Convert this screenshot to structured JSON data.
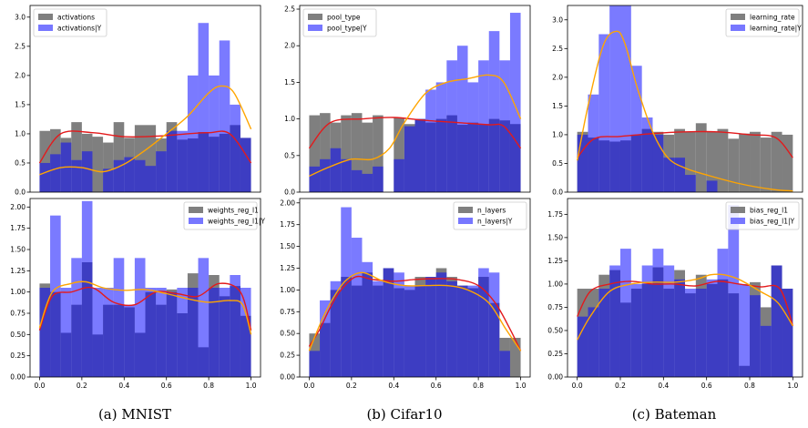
{
  "colors": {
    "marginal": "#7f7f7f",
    "conditional": "#7777ff",
    "overlap": "#3b3bb5",
    "kde_marginal": "#e31a1c",
    "kde_conditional": "#ffa500"
  },
  "captions": [
    "(a) MNIST",
    "(b) Cifar10",
    "(c) Bateman"
  ],
  "chart_data": [
    {
      "type": "bar",
      "legend": [
        "activations",
        "activations|Y"
      ],
      "legend_position": "top-left",
      "ylim": [
        0,
        3.2
      ],
      "yticks": [
        "0.0",
        "0.5",
        "1.0",
        "1.5",
        "2.0",
        "2.5",
        "3.0"
      ],
      "ytick_values": [
        0,
        0.5,
        1,
        1.5,
        2,
        2.5,
        3
      ],
      "xticks": [],
      "bins": 20,
      "marginal": [
        1.05,
        1.08,
        0.93,
        1.2,
        1.0,
        0.95,
        0.85,
        1.2,
        0.93,
        1.15,
        1.15,
        0.92,
        1.2,
        0.9,
        0.92,
        1.03,
        0.95,
        1.0,
        1.15,
        0.93
      ],
      "conditional": [
        0.5,
        0.65,
        0.85,
        0.55,
        0.7,
        0.0,
        0.4,
        0.55,
        0.6,
        0.55,
        0.45,
        0.7,
        1.05,
        1.05,
        2.0,
        2.9,
        2.0,
        2.6,
        1.5,
        0.93
      ],
      "kde_marginal": [
        [
          0,
          0.5
        ],
        [
          0.1,
          1.0
        ],
        [
          0.25,
          1.02
        ],
        [
          0.4,
          0.95
        ],
        [
          0.55,
          0.96
        ],
        [
          0.7,
          1.0
        ],
        [
          0.8,
          1.02
        ],
        [
          0.9,
          1.0
        ],
        [
          1.0,
          0.5
        ]
      ],
      "kde_conditional": [
        [
          0,
          0.3
        ],
        [
          0.1,
          0.42
        ],
        [
          0.2,
          0.42
        ],
        [
          0.3,
          0.35
        ],
        [
          0.4,
          0.48
        ],
        [
          0.5,
          0.72
        ],
        [
          0.6,
          1.0
        ],
        [
          0.7,
          1.3
        ],
        [
          0.8,
          1.7
        ],
        [
          0.86,
          1.82
        ],
        [
          0.92,
          1.7
        ],
        [
          1.0,
          1.08
        ]
      ]
    },
    {
      "type": "bar",
      "legend": [
        "pool_type",
        "pool_type|Y"
      ],
      "legend_position": "top-left",
      "ylim": [
        0,
        2.55
      ],
      "yticks": [
        "0.0",
        "0.5",
        "1.0",
        "1.5",
        "2.0",
        "2.5"
      ],
      "ytick_values": [
        0,
        0.5,
        1,
        1.5,
        2,
        2.5
      ],
      "xticks": [],
      "bins": 20,
      "marginal": [
        1.05,
        1.08,
        0.95,
        1.05,
        1.08,
        0.95,
        1.05,
        0.0,
        1.02,
        0.93,
        1.0,
        0.95,
        1.0,
        1.05,
        0.92,
        0.95,
        0.93,
        1.0,
        0.98,
        0.93
      ],
      "conditional": [
        0.35,
        0.45,
        0.6,
        0.45,
        0.3,
        0.25,
        0.35,
        0.0,
        0.45,
        0.9,
        1.0,
        1.4,
        1.5,
        1.8,
        2.0,
        1.5,
        1.8,
        2.2,
        1.8,
        2.45
      ],
      "kde_marginal": [
        [
          0,
          0.6
        ],
        [
          0.1,
          0.95
        ],
        [
          0.25,
          1.0
        ],
        [
          0.4,
          1.02
        ],
        [
          0.55,
          0.98
        ],
        [
          0.7,
          0.95
        ],
        [
          0.85,
          0.92
        ],
        [
          0.92,
          0.9
        ],
        [
          1.0,
          0.6
        ]
      ],
      "kde_conditional": [
        [
          0,
          0.22
        ],
        [
          0.1,
          0.35
        ],
        [
          0.2,
          0.45
        ],
        [
          0.3,
          0.45
        ],
        [
          0.38,
          0.6
        ],
        [
          0.45,
          0.95
        ],
        [
          0.55,
          1.35
        ],
        [
          0.65,
          1.5
        ],
        [
          0.75,
          1.55
        ],
        [
          0.85,
          1.6
        ],
        [
          0.92,
          1.5
        ],
        [
          1.0,
          1.0
        ]
      ]
    },
    {
      "type": "bar",
      "legend": [
        "learning_rate",
        "learning_rate|Y"
      ],
      "legend_position": "top-right",
      "ylim": [
        0,
        3.25
      ],
      "yticks": [
        "0.0",
        "0.5",
        "1.0",
        "1.5",
        "2.0",
        "2.5",
        "3.0"
      ],
      "ytick_values": [
        0,
        0.5,
        1,
        1.5,
        2,
        2.5,
        3
      ],
      "xticks": [],
      "bins": 20,
      "marginal": [
        1.05,
        0.95,
        0.9,
        0.88,
        0.9,
        1.0,
        1.1,
        1.05,
        1.0,
        1.1,
        1.05,
        1.2,
        1.05,
        1.1,
        0.93,
        1.02,
        1.05,
        0.95,
        1.05,
        1.0
      ],
      "conditional": [
        1.0,
        1.7,
        2.75,
        3.25,
        3.25,
        2.2,
        1.3,
        1.0,
        0.6,
        0.6,
        0.3,
        0.0,
        0.2,
        0.0,
        0.0,
        0.0,
        0.0,
        0.0,
        0.0,
        0.0
      ],
      "kde_marginal": [
        [
          0,
          0.6
        ],
        [
          0.08,
          0.93
        ],
        [
          0.2,
          0.97
        ],
        [
          0.35,
          1.02
        ],
        [
          0.5,
          1.05
        ],
        [
          0.65,
          1.05
        ],
        [
          0.8,
          1.0
        ],
        [
          0.92,
          0.95
        ],
        [
          1.0,
          0.6
        ]
      ],
      "kde_conditional": [
        [
          0,
          0.55
        ],
        [
          0.05,
          1.5
        ],
        [
          0.12,
          2.55
        ],
        [
          0.18,
          2.8
        ],
        [
          0.22,
          2.6
        ],
        [
          0.28,
          1.8
        ],
        [
          0.35,
          1.05
        ],
        [
          0.42,
          0.6
        ],
        [
          0.5,
          0.42
        ],
        [
          0.6,
          0.3
        ],
        [
          0.75,
          0.15
        ],
        [
          0.9,
          0.05
        ],
        [
          1.0,
          0.02
        ]
      ]
    },
    {
      "type": "bar",
      "legend": [
        "weights_reg_l1",
        "weights_reg_l1|Y"
      ],
      "legend_position": "top-right",
      "ylim": [
        0,
        2.1
      ],
      "yticks": [
        "0.00",
        "0.25",
        "0.50",
        "0.75",
        "1.00",
        "1.25",
        "1.50",
        "1.75",
        "2.00"
      ],
      "ytick_values": [
        0,
        0.25,
        0.5,
        0.75,
        1,
        1.25,
        1.5,
        1.75,
        2
      ],
      "xticks": [
        "0.0",
        "0.2",
        "0.4",
        "0.6",
        "0.8",
        "1.0"
      ],
      "xtick_values": [
        0,
        0.2,
        0.4,
        0.6,
        0.8,
        1.0
      ],
      "bins": 20,
      "marginal": [
        1.1,
        1.0,
        0.52,
        0.85,
        1.35,
        0.5,
        0.85,
        0.85,
        0.82,
        0.52,
        1.0,
        0.85,
        1.03,
        0.75,
        1.22,
        0.35,
        1.2,
        0.95,
        1.07,
        0.72
      ],
      "conditional": [
        1.05,
        1.9,
        1.05,
        1.4,
        2.07,
        1.05,
        1.05,
        1.4,
        0.85,
        1.4,
        1.05,
        1.05,
        1.0,
        1.05,
        1.05,
        1.4,
        1.05,
        1.05,
        1.2,
        1.05
      ],
      "kde_marginal": [
        [
          0,
          0.55
        ],
        [
          0.06,
          0.95
        ],
        [
          0.15,
          1.0
        ],
        [
          0.25,
          1.05
        ],
        [
          0.35,
          0.88
        ],
        [
          0.45,
          0.85
        ],
        [
          0.55,
          1.0
        ],
        [
          0.65,
          0.98
        ],
        [
          0.75,
          0.95
        ],
        [
          0.85,
          1.1
        ],
        [
          0.95,
          1.0
        ],
        [
          1.0,
          0.55
        ]
      ],
      "kde_conditional": [
        [
          0,
          0.58
        ],
        [
          0.06,
          1.0
        ],
        [
          0.15,
          1.1
        ],
        [
          0.22,
          1.12
        ],
        [
          0.3,
          1.05
        ],
        [
          0.4,
          1.02
        ],
        [
          0.5,
          1.03
        ],
        [
          0.6,
          0.98
        ],
        [
          0.7,
          0.92
        ],
        [
          0.8,
          0.88
        ],
        [
          0.9,
          0.9
        ],
        [
          0.96,
          0.85
        ],
        [
          1.0,
          0.5
        ]
      ]
    },
    {
      "type": "bar",
      "legend": [
        "n_layers",
        "n_layers|Y"
      ],
      "legend_position": "top-right",
      "ylim": [
        0,
        2.05
      ],
      "yticks": [
        "0.00",
        "0.25",
        "0.50",
        "0.75",
        "1.00",
        "1.25",
        "1.50",
        "1.75",
        "2.00"
      ],
      "ytick_values": [
        0,
        0.25,
        0.5,
        0.75,
        1,
        1.25,
        1.5,
        1.75,
        2
      ],
      "xticks": [
        "0.0",
        "0.2",
        "0.4",
        "0.6",
        "0.8",
        "1.0"
      ],
      "xtick_values": [
        0,
        0.2,
        0.4,
        0.6,
        0.8,
        1.0
      ],
      "bins": 20,
      "marginal": [
        0.5,
        0.62,
        1.0,
        1.15,
        1.05,
        1.2,
        1.05,
        1.25,
        1.02,
        1.0,
        1.15,
        1.15,
        1.25,
        1.15,
        1.05,
        1.02,
        1.15,
        0.85,
        0.45,
        0.45
      ],
      "conditional": [
        0.3,
        0.88,
        1.1,
        1.95,
        1.6,
        1.32,
        1.1,
        1.25,
        1.2,
        1.05,
        1.05,
        1.15,
        1.2,
        1.1,
        1.05,
        1.05,
        1.25,
        1.2,
        0.3,
        0.0
      ],
      "kde_marginal": [
        [
          0,
          0.35
        ],
        [
          0.05,
          0.55
        ],
        [
          0.1,
          0.8
        ],
        [
          0.15,
          1.0
        ],
        [
          0.22,
          1.15
        ],
        [
          0.3,
          1.12
        ],
        [
          0.4,
          1.1
        ],
        [
          0.5,
          1.12
        ],
        [
          0.6,
          1.13
        ],
        [
          0.7,
          1.12
        ],
        [
          0.8,
          1.05
        ],
        [
          0.88,
          0.85
        ],
        [
          0.95,
          0.55
        ],
        [
          1.0,
          0.3
        ]
      ],
      "kde_conditional": [
        [
          0,
          0.3
        ],
        [
          0.05,
          0.6
        ],
        [
          0.1,
          0.85
        ],
        [
          0.17,
          1.1
        ],
        [
          0.25,
          1.2
        ],
        [
          0.35,
          1.1
        ],
        [
          0.45,
          1.05
        ],
        [
          0.55,
          1.05
        ],
        [
          0.65,
          1.05
        ],
        [
          0.75,
          1.0
        ],
        [
          0.85,
          0.85
        ],
        [
          0.93,
          0.55
        ],
        [
          1.0,
          0.3
        ]
      ]
    },
    {
      "type": "bar",
      "legend": [
        "bias_reg_l1",
        "bias_reg_l1|Y"
      ],
      "legend_position": "top-right",
      "ylim": [
        0,
        1.92
      ],
      "yticks": [
        "0.00",
        "0.25",
        "0.50",
        "0.75",
        "1.00",
        "1.25",
        "1.50",
        "1.75"
      ],
      "ytick_values": [
        0,
        0.25,
        0.5,
        0.75,
        1,
        1.25,
        1.5,
        1.75
      ],
      "xticks": [
        "0.0",
        "0.2",
        "0.4",
        "0.6",
        "0.8",
        "1.0"
      ],
      "xtick_values": [
        0,
        0.2,
        0.4,
        0.6,
        0.8,
        1.0
      ],
      "bins": 20,
      "marginal": [
        0.95,
        0.95,
        1.1,
        1.15,
        0.8,
        0.95,
        1.0,
        1.18,
        0.95,
        1.15,
        0.9,
        1.1,
        1.0,
        1.05,
        0.9,
        0.12,
        1.02,
        0.75,
        1.2,
        0.95
      ],
      "conditional": [
        0.65,
        0.75,
        0.95,
        1.2,
        1.38,
        1.0,
        1.2,
        1.38,
        1.2,
        1.05,
        0.95,
        0.95,
        1.05,
        1.38,
        1.85,
        1.0,
        0.88,
        0.55,
        1.2,
        0.95
      ],
      "kde_marginal": [
        [
          0,
          0.65
        ],
        [
          0.06,
          0.92
        ],
        [
          0.15,
          1.0
        ],
        [
          0.25,
          1.03
        ],
        [
          0.35,
          1.0
        ],
        [
          0.45,
          1.0
        ],
        [
          0.55,
          0.98
        ],
        [
          0.65,
          1.03
        ],
        [
          0.75,
          1.0
        ],
        [
          0.85,
          0.97
        ],
        [
          0.94,
          0.95
        ],
        [
          1.0,
          0.55
        ]
      ],
      "kde_conditional": [
        [
          0,
          0.4
        ],
        [
          0.06,
          0.65
        ],
        [
          0.15,
          0.92
        ],
        [
          0.25,
          1.0
        ],
        [
          0.35,
          1.02
        ],
        [
          0.45,
          1.02
        ],
        [
          0.55,
          1.05
        ],
        [
          0.62,
          1.1
        ],
        [
          0.68,
          1.1
        ],
        [
          0.75,
          1.05
        ],
        [
          0.85,
          0.92
        ],
        [
          0.93,
          0.8
        ],
        [
          1.0,
          0.55
        ]
      ]
    }
  ]
}
